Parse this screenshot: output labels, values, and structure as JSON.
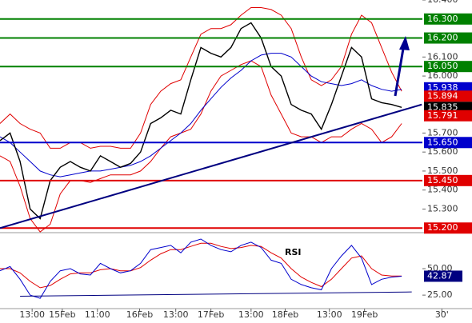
{
  "chart_data": {
    "type": "line",
    "xlim": [
      0,
      47
    ],
    "xticks": [
      {
        "value": 3.2,
        "label": "13:00"
      },
      {
        "value": 6.2,
        "label": "15Feb"
      },
      {
        "value": 9.7,
        "label": "11:00"
      },
      {
        "value": 13.9,
        "label": "16Feb"
      },
      {
        "value": 17.5,
        "label": "13:00"
      },
      {
        "value": 21,
        "label": "17Feb"
      },
      {
        "value": 25,
        "label": "13:00"
      },
      {
        "value": 28.4,
        "label": "18Feb"
      },
      {
        "value": 32.8,
        "label": "13:00"
      },
      {
        "value": 36.3,
        "label": "19Feb"
      },
      {
        "value": 44,
        "label": "30'"
      }
    ],
    "x": [
      0,
      1,
      2,
      3,
      4,
      5,
      6,
      7,
      8,
      9,
      10,
      11,
      12,
      13,
      14,
      15,
      16,
      17,
      18,
      19,
      20,
      21,
      22,
      23,
      24,
      25,
      26,
      27,
      28,
      29,
      30,
      31,
      32,
      33,
      34,
      35,
      36,
      37,
      38,
      39,
      40
    ],
    "ylim": [
      15.18,
      16.4
    ],
    "yticks": [
      {
        "value": 16.4,
        "label": "16.400"
      },
      {
        "value": 16.1,
        "label": "16.100"
      },
      {
        "value": 16.0,
        "label": "16.000"
      },
      {
        "value": 15.7,
        "label": "15.700"
      },
      {
        "value": 15.6,
        "label": "15.600"
      },
      {
        "value": 15.5,
        "label": "15.500"
      },
      {
        "value": 15.4,
        "label": "15.400"
      },
      {
        "value": 15.3,
        "label": "15.300"
      }
    ],
    "series": [
      {
        "color": "#e00000",
        "values": [
          15.75,
          15.8,
          15.75,
          15.72,
          15.7,
          15.62,
          15.62,
          15.65,
          15.65,
          15.62,
          15.63,
          15.63,
          15.62,
          15.62,
          15.7,
          15.85,
          15.92,
          15.96,
          15.98,
          16.1,
          16.22,
          16.25,
          16.25,
          16.27,
          16.32,
          16.36,
          16.36,
          16.35,
          16.32,
          16.25,
          16.1,
          15.98,
          15.95,
          15.98,
          16.05,
          16.22,
          16.32,
          16.28,
          16.15,
          16.02,
          15.92
        ]
      },
      {
        "color": "#e00000",
        "values": [
          15.58,
          15.55,
          15.42,
          15.25,
          15.18,
          15.22,
          15.38,
          15.45,
          15.45,
          15.44,
          15.46,
          15.48,
          15.48,
          15.48,
          15.5,
          15.55,
          15.62,
          15.68,
          15.7,
          15.72,
          15.8,
          15.92,
          16.0,
          16.03,
          16.06,
          16.08,
          16.05,
          15.9,
          15.8,
          15.7,
          15.68,
          15.68,
          15.65,
          15.68,
          15.68,
          15.72,
          15.75,
          15.72,
          15.65,
          15.68,
          15.75
        ]
      },
      {
        "color": "#0000cc",
        "values": [
          15.68,
          15.65,
          15.6,
          15.55,
          15.5,
          15.48,
          15.47,
          15.48,
          15.49,
          15.5,
          15.5,
          15.51,
          15.52,
          15.53,
          15.55,
          15.58,
          15.62,
          15.66,
          15.7,
          15.75,
          15.82,
          15.88,
          15.94,
          15.99,
          16.03,
          16.08,
          16.11,
          16.12,
          16.12,
          16.1,
          16.05,
          16.0,
          15.97,
          15.96,
          15.95,
          15.96,
          15.98,
          15.95,
          15.93,
          15.92,
          15.93
        ]
      },
      {
        "color": "#000000",
        "values": [
          15.66,
          15.7,
          15.55,
          15.3,
          15.25,
          15.45,
          15.52,
          15.55,
          15.52,
          15.5,
          15.58,
          15.55,
          15.52,
          15.54,
          15.6,
          15.75,
          15.78,
          15.82,
          15.8,
          15.98,
          16.15,
          16.12,
          16.1,
          16.15,
          16.25,
          16.28,
          16.2,
          16.05,
          16.0,
          15.85,
          15.82,
          15.8,
          15.72,
          15.85,
          16.0,
          16.15,
          16.1,
          15.88,
          15.86,
          15.85,
          15.835
        ]
      }
    ],
    "levels": [
      {
        "value": 16.3,
        "label": "16.300",
        "color": "#008000"
      },
      {
        "value": 16.2,
        "label": "16.200",
        "color": "#008000"
      },
      {
        "value": 16.05,
        "label": "16.050",
        "color": "#008000"
      },
      {
        "value": 15.65,
        "label": "15.650",
        "color": "#0000cc"
      },
      {
        "value": 15.45,
        "label": "15.450",
        "color": "#e00000"
      },
      {
        "value": 15.2,
        "label": "15.200",
        "color": "#e00000"
      }
    ],
    "markers": [
      {
        "value": 15.938,
        "color": "#0000cc"
      },
      {
        "value": 15.894,
        "color": "#e00000"
      },
      {
        "value": 15.835,
        "color": "#000000"
      },
      {
        "value": 15.791,
        "color": "#e00000"
      }
    ],
    "trendline": {
      "x": [
        0,
        42
      ],
      "values": [
        15.2,
        15.85
      ],
      "color": "#000080"
    },
    "rsi": {
      "title": "RSI",
      "ylim": [
        13,
        81
      ],
      "yticks": [
        {
          "value": 50,
          "label": "50.00"
        },
        {
          "value": 25,
          "label": "25.00"
        }
      ],
      "series": [
        {
          "color": "#e00000",
          "values": [
            50,
            50,
            46,
            38,
            32,
            34,
            40,
            45,
            46,
            46,
            49,
            50,
            48,
            48,
            51,
            58,
            64,
            68,
            68,
            71,
            74,
            74,
            71,
            69,
            70,
            72,
            71,
            65,
            60,
            50,
            42,
            37,
            33,
            40,
            50,
            60,
            62,
            50,
            44,
            43,
            43
          ]
        },
        {
          "color": "#0000cc",
          "values": [
            48,
            52,
            40,
            25,
            22,
            38,
            48,
            50,
            45,
            44,
            55,
            50,
            46,
            48,
            55,
            68,
            70,
            72,
            65,
            75,
            78,
            72,
            68,
            66,
            72,
            75,
            70,
            58,
            55,
            40,
            35,
            32,
            30,
            50,
            62,
            72,
            60,
            35,
            40,
            42,
            42.87
          ]
        }
      ],
      "current": 42.87,
      "trendline": {
        "x": [
          2,
          41
        ],
        "values": [
          24,
          28
        ],
        "color": "#000080"
      }
    }
  }
}
